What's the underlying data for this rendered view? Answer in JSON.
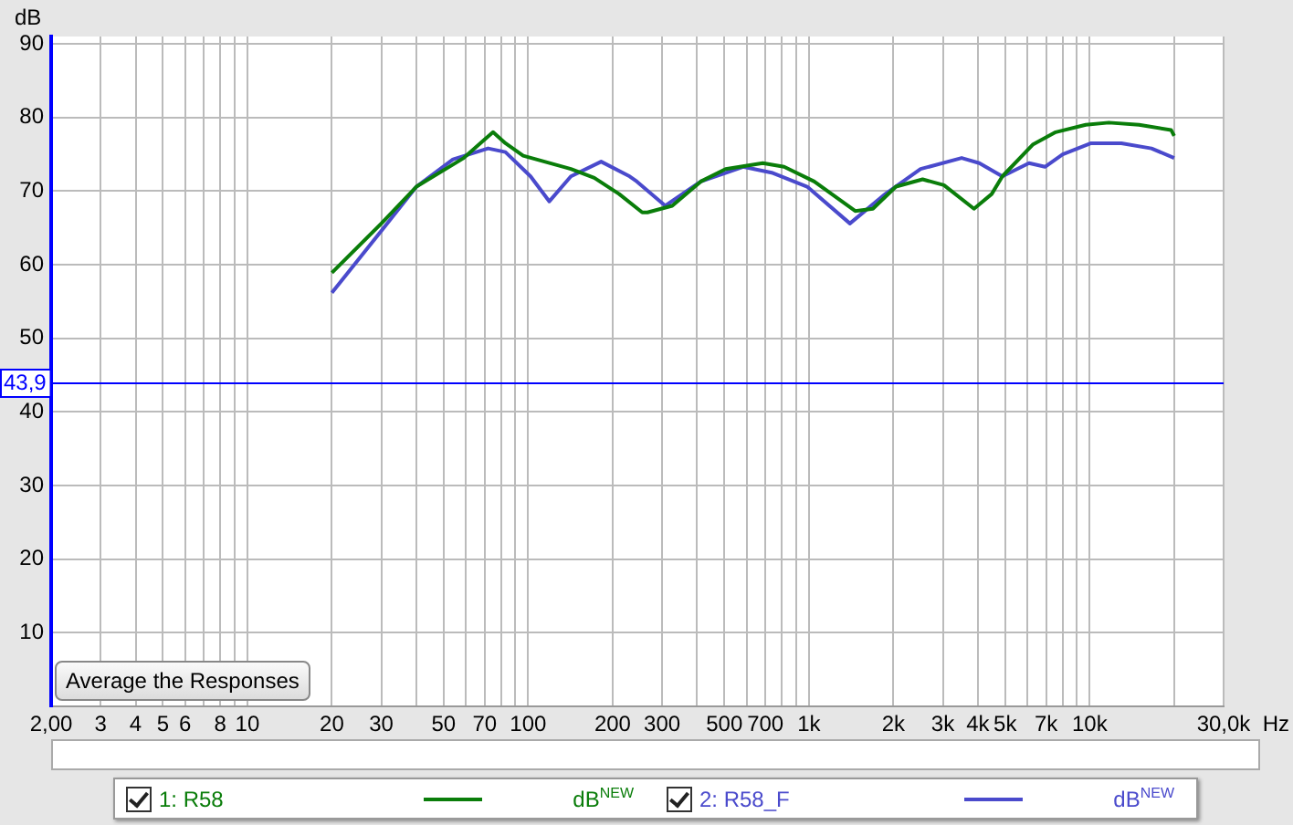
{
  "chart_data": {
    "type": "line",
    "xlabel": "Hz",
    "ylabel": "dB",
    "log": "x",
    "xlim": [
      2,
      30000
    ],
    "xticks": [
      {
        "value": 2,
        "label": "2,00"
      },
      3,
      4,
      5,
      6,
      {
        "value": 7,
        "label": null
      },
      8,
      {
        "value": 9,
        "label": null
      },
      10,
      20,
      30,
      {
        "value": 40,
        "label": null
      },
      50,
      {
        "value": 60,
        "label": null
      },
      70,
      {
        "value": 80,
        "label": null
      },
      {
        "value": 90,
        "label": null
      },
      100,
      200,
      300,
      {
        "value": 400,
        "label": null
      },
      500,
      {
        "value": 600,
        "label": null
      },
      700,
      {
        "value": 800,
        "label": null
      },
      {
        "value": 900,
        "label": null
      },
      {
        "value": 1000,
        "label": "1k"
      },
      {
        "value": 2000,
        "label": "2k"
      },
      {
        "value": 3000,
        "label": "3k"
      },
      {
        "value": 4000,
        "label": "4k"
      },
      {
        "value": 5000,
        "label": "5k"
      },
      {
        "value": 6000,
        "label": null
      },
      {
        "value": 7000,
        "label": "7k"
      },
      {
        "value": 8000,
        "label": null
      },
      {
        "value": 9000,
        "label": null
      },
      {
        "value": 10000,
        "label": "10k"
      },
      {
        "value": 20000,
        "label": null
      },
      {
        "value": 30000,
        "label": "30,0k"
      }
    ],
    "ylim": [
      0,
      91
    ],
    "yticks": [
      10,
      20,
      30,
      40,
      50,
      60,
      70,
      80,
      90
    ],
    "grid": true,
    "legend": "bottom",
    "marker": "none",
    "line_style": "solid",
    "ref_lines": [
      {
        "axis": "y",
        "value": 43.9,
        "label": "43,9",
        "color": "#0000ff"
      }
    ],
    "annotations": [
      "dB$^{NEW}$",
      "dB$^{NEW}$",
      "Average the Responses"
    ],
    "series": [
      {
        "name": "1: R58",
        "color": "#0a7d0a",
        "x": [
          20,
          30,
          40,
          59,
          69,
          75,
          83,
          96,
          142,
          172,
          211,
          255,
          266,
          326,
          412,
          505,
          685,
          816,
          1045,
          1462,
          1690,
          2042,
          2541,
          3027,
          3873,
          4478,
          4887,
          6266,
          7568,
          9683,
          11700,
          15000,
          19500,
          20000
        ],
        "values": [
          58.9,
          65.6,
          70.6,
          74.5,
          76.8,
          78,
          76.5,
          74.8,
          73,
          71.8,
          69.6,
          67.1,
          67.1,
          68,
          71.3,
          73,
          73.8,
          73.3,
          71.3,
          67.3,
          67.6,
          70.6,
          71.6,
          70.8,
          67.6,
          69.6,
          72,
          76.3,
          78,
          79,
          79.3,
          79,
          78.3,
          77.5
        ]
      },
      {
        "name": "2: R58_F",
        "color": "#4a4acc",
        "x": [
          20,
          30,
          40,
          54,
          72,
          83,
          102,
          119,
          142,
          182,
          230,
          244,
          308,
          412,
          583,
          737,
          986,
          1400,
          1871,
          2500,
          3500,
          4046,
          4887,
          6081,
          6934,
          8017,
          10120,
          12970,
          16600,
          20000
        ],
        "values": [
          56.2,
          64.6,
          70.6,
          74.3,
          75.8,
          75.3,
          72,
          68.6,
          72,
          74,
          72,
          71.3,
          68,
          71.3,
          73.3,
          72.5,
          70.6,
          65.6,
          69.6,
          73,
          74.5,
          73.8,
          72,
          73.8,
          73.3,
          75,
          76.5,
          76.5,
          75.8,
          74.5
        ]
      }
    ]
  }
}
